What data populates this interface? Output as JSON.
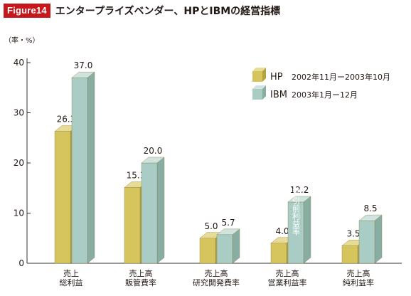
{
  "figure": {
    "tag": "Figure14",
    "title": "エンタープライズベンダー、HPとIBMの経営指標"
  },
  "colors": {
    "tag_bg": "#c8161d",
    "hp_front": "#d6c55d",
    "hp_side": "#b5a33d",
    "hp_top": "#e8dc95",
    "ibm_front": "#a9cdc4",
    "ibm_side": "#88aea4",
    "ibm_top": "#cfe4de",
    "axis": "#333333"
  },
  "chart_data": {
    "type": "bar",
    "ylabel": "（率・%）",
    "ylim": [
      0,
      40
    ],
    "yticks": [
      "0",
      "10",
      "20",
      "30",
      "40"
    ],
    "grid": false,
    "legend_position": "top-right",
    "categories": [
      [
        "売上",
        "総利益"
      ],
      [
        "売上高",
        "販管費率"
      ],
      [
        "売上高",
        "研究開発費率"
      ],
      [
        "売上高",
        "営業利益率"
      ],
      [
        "売上高",
        "純利益率"
      ]
    ],
    "series": [
      {
        "name": "HP",
        "period": "2002年11月ー2003年10月",
        "values": [
          26.3,
          15.1,
          5.0,
          4.0,
          3.5
        ],
        "labels": [
          "26.3",
          "15.1",
          "5.0",
          "4.0",
          "3.5"
        ]
      },
      {
        "name": "IBM",
        "period": "2003年1月ー12月",
        "values": [
          37.0,
          20.0,
          5.7,
          12.2,
          8.5
        ],
        "labels": [
          "37.0",
          "20.0",
          "5.7",
          "12.2",
          "8.5"
        ]
      }
    ],
    "annotation": "税引前利益率"
  }
}
